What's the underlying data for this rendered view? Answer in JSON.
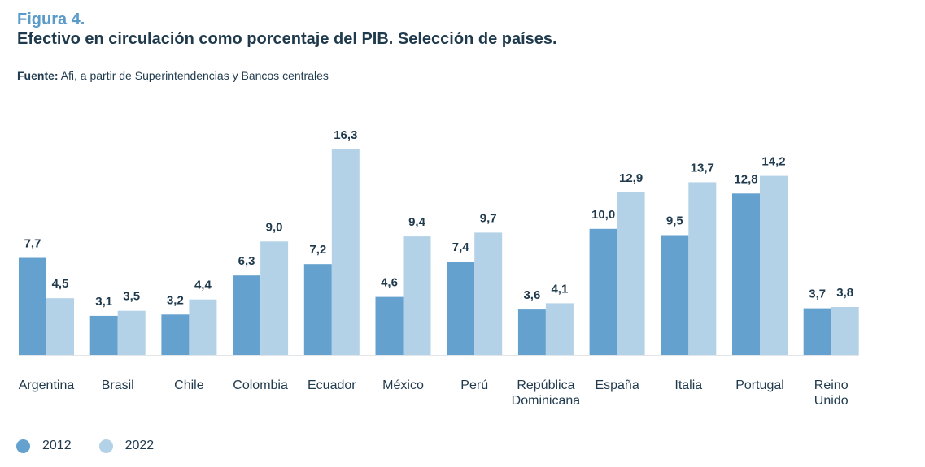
{
  "figure": {
    "label": "Figura 4.",
    "title": "Efectivo en circulación como porcentaje del PIB. Selección de países.",
    "source_label": "Fuente:",
    "source_text": "Afi, a partir de Superintendencias y Bancos centrales"
  },
  "colors": {
    "series_2012": "#64a1cf",
    "series_2022": "#b3d1e7",
    "text": "#1f3a4d",
    "accent": "#5b9bc9",
    "axis": "#1f3a4d"
  },
  "chart_data": {
    "type": "bar",
    "title": "Efectivo en circulación como porcentaje del PIB. Selección de países.",
    "xlabel": "",
    "ylabel": "",
    "ylim": [
      0,
      16.3
    ],
    "grid": false,
    "legend_position": "bottom-left",
    "categories": [
      [
        "Argentina"
      ],
      [
        "Brasil"
      ],
      [
        "Chile"
      ],
      [
        "Colombia"
      ],
      [
        "Ecuador"
      ],
      [
        "México"
      ],
      [
        "Perú"
      ],
      [
        "República",
        "Dominicana"
      ],
      [
        "España"
      ],
      [
        "Italia"
      ],
      [
        "Portugal"
      ],
      [
        "Reino",
        "Unido"
      ]
    ],
    "series": [
      {
        "name": "2012",
        "values": [
          7.7,
          3.1,
          3.2,
          6.3,
          7.2,
          4.6,
          7.4,
          3.6,
          10.0,
          9.5,
          12.8,
          3.7
        ],
        "labels": [
          "7,7",
          "3,1",
          "3,2",
          "6,3",
          "7,2",
          "4,6",
          "7,4",
          "3,6",
          "10,0",
          "9,5",
          "12,8",
          "3,7"
        ]
      },
      {
        "name": "2022",
        "values": [
          4.5,
          3.5,
          4.4,
          9.0,
          16.3,
          9.4,
          9.7,
          4.1,
          12.9,
          13.7,
          14.2,
          3.8
        ],
        "labels": [
          "4,5",
          "3,5",
          "4,4",
          "9,0",
          "16,3",
          "9,4",
          "9,7",
          "4,1",
          "12,9",
          "13,7",
          "14,2",
          "3,8"
        ]
      }
    ]
  },
  "legend": {
    "items": [
      {
        "label": "2012"
      },
      {
        "label": "2022"
      }
    ]
  }
}
